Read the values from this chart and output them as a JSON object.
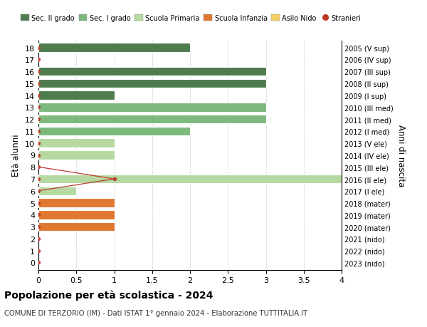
{
  "title": "Popolazione per età scolastica - 2024",
  "subtitle": "COMUNE DI TERZORIO (IM) - Dati ISTAT 1° gennaio 2024 - Elaborazione TUTTITALIA.IT",
  "ylabel_left": "Età alunni",
  "ylabel_right": "Anni di nascita",
  "xlim": [
    0,
    4.0
  ],
  "xticks": [
    0,
    0.5,
    1.0,
    1.5,
    2.0,
    2.5,
    3.0,
    3.5,
    4.0
  ],
  "ages": [
    18,
    17,
    16,
    15,
    14,
    13,
    12,
    11,
    10,
    9,
    8,
    7,
    6,
    5,
    4,
    3,
    2,
    1,
    0
  ],
  "right_labels": [
    "2005 (V sup)",
    "2006 (IV sup)",
    "2007 (III sup)",
    "2008 (II sup)",
    "2009 (I sup)",
    "2010 (III med)",
    "2011 (II med)",
    "2012 (I med)",
    "2013 (V ele)",
    "2014 (IV ele)",
    "2015 (III ele)",
    "2016 (II ele)",
    "2017 (I ele)",
    "2018 (mater)",
    "2019 (mater)",
    "2020 (mater)",
    "2021 (nido)",
    "2022 (nido)",
    "2023 (nido)"
  ],
  "bars": [
    {
      "age": 18,
      "value": 2.0,
      "color": "#4e7c4e"
    },
    {
      "age": 17,
      "value": 0,
      "color": "#4e7c4e"
    },
    {
      "age": 16,
      "value": 3.0,
      "color": "#4e7c4e"
    },
    {
      "age": 15,
      "value": 3.0,
      "color": "#4e7c4e"
    },
    {
      "age": 14,
      "value": 1.0,
      "color": "#4e7c4e"
    },
    {
      "age": 13,
      "value": 3.0,
      "color": "#7db87d"
    },
    {
      "age": 12,
      "value": 3.0,
      "color": "#7db87d"
    },
    {
      "age": 11,
      "value": 2.0,
      "color": "#7db87d"
    },
    {
      "age": 10,
      "value": 1.0,
      "color": "#b5d9a0"
    },
    {
      "age": 9,
      "value": 1.0,
      "color": "#b5d9a0"
    },
    {
      "age": 8,
      "value": 0,
      "color": "#b5d9a0"
    },
    {
      "age": 7,
      "value": 4.0,
      "color": "#b5d9a0"
    },
    {
      "age": 6,
      "value": 0.5,
      "color": "#b5d9a0"
    },
    {
      "age": 5,
      "value": 1.0,
      "color": "#e07830"
    },
    {
      "age": 4,
      "value": 1.0,
      "color": "#e07830"
    },
    {
      "age": 3,
      "value": 1.0,
      "color": "#e07830"
    },
    {
      "age": 2,
      "value": 0,
      "color": "#f5d060"
    },
    {
      "age": 1,
      "value": 0,
      "color": "#f5d060"
    },
    {
      "age": 0,
      "value": 0,
      "color": "#f5d060"
    }
  ],
  "stranieri_line": {
    "ages": [
      8,
      7,
      6
    ],
    "values": [
      0,
      1.0,
      0
    ]
  },
  "stranieri_all_ages": [
    18,
    17,
    16,
    15,
    14,
    13,
    12,
    11,
    10,
    9,
    8,
    7,
    6,
    5,
    4,
    3,
    2,
    1,
    0
  ],
  "stranieri_color": "#c0392b",
  "colors": {
    "Sec. II grado": "#4e7c4e",
    "Sec. I grado": "#7db87d",
    "Scuola Primaria": "#b5d9a0",
    "Scuola Infanzia": "#e07830",
    "Asilo Nido": "#f5d060",
    "Stranieri": "#c0392b"
  },
  "legend_items": [
    {
      "label": "Sec. II grado",
      "color": "#4e7c4e",
      "type": "patch"
    },
    {
      "label": "Sec. I grado",
      "color": "#7db87d",
      "type": "patch"
    },
    {
      "label": "Scuola Primaria",
      "color": "#b5d9a0",
      "type": "patch"
    },
    {
      "label": "Scuola Infanzia",
      "color": "#e07830",
      "type": "patch"
    },
    {
      "label": "Asilo Nido",
      "color": "#f5d060",
      "type": "patch"
    },
    {
      "label": "Stranieri",
      "color": "#c0392b",
      "type": "dot"
    }
  ],
  "background_color": "#ffffff",
  "grid_color": "#cccccc",
  "bar_height": 0.75
}
